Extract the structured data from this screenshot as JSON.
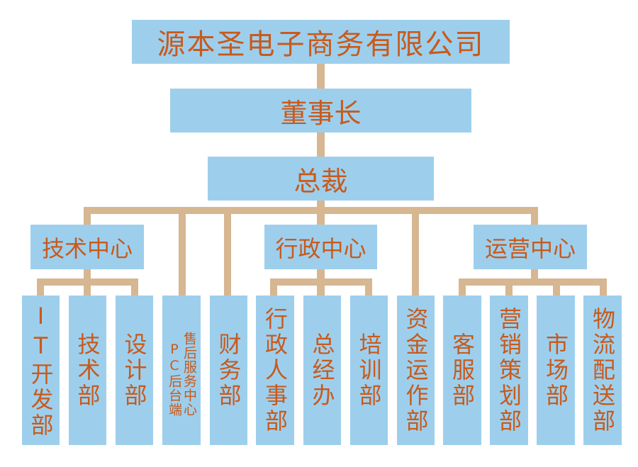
{
  "company": "源本圣电子商务有限公司",
  "chairman": "董事长",
  "ceo": "总裁",
  "centers": {
    "tech": "技术中心",
    "admin": "行政中心",
    "ops": "运营中心"
  },
  "departments": {
    "it": "IT开发部",
    "jishu": "技术部",
    "sheji": "设计部",
    "shouhou_a": "售后服务中心",
    "shouhou_b": "PC后台端",
    "caiwu": "财务部",
    "renshi": "行政人事部",
    "zongjing": "总经办",
    "peixun": "培训部",
    "zijin": "资金运作部",
    "kefu": "客服部",
    "yingxiao": "营销策划部",
    "shichang": "市场部",
    "wuliu": "物流配送部"
  },
  "colors": {
    "box": "#9dcfed",
    "text": "#c85a1c",
    "connector": "#d6b791"
  }
}
